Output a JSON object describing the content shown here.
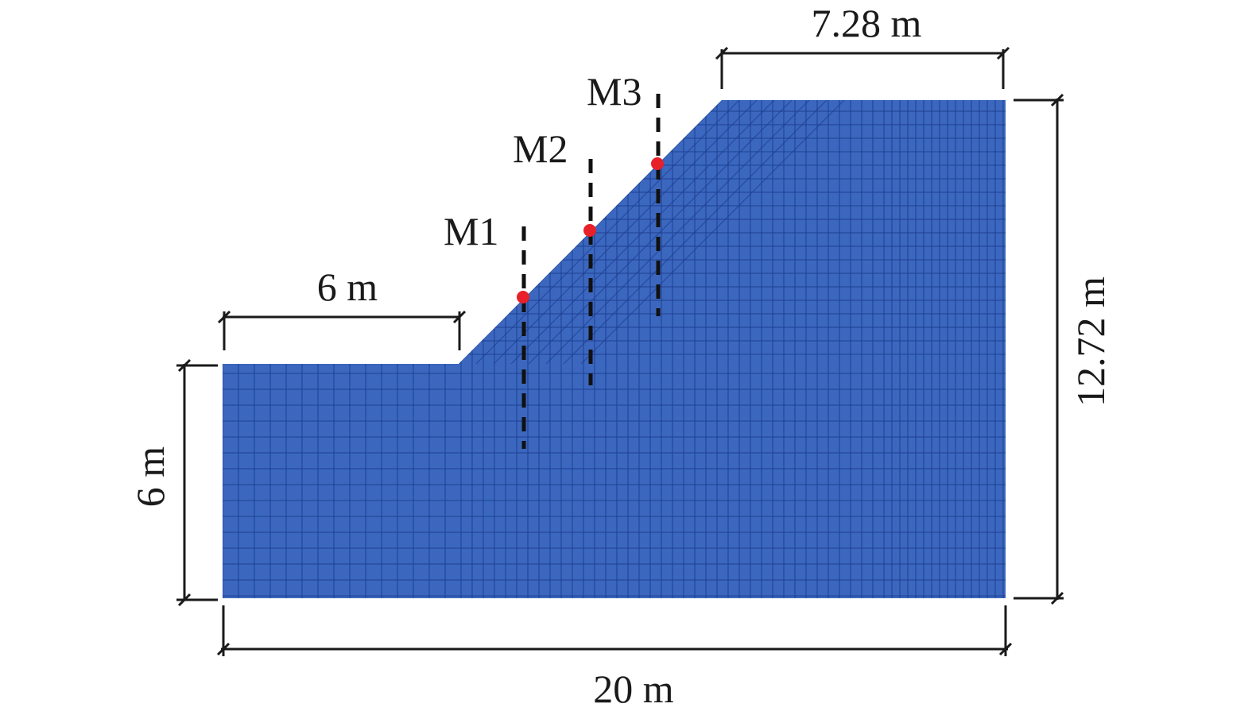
{
  "diagram": {
    "mesh_color": "#3b67bf",
    "mesh_line_color": "#1f3f8f",
    "marker_color": "#e8202a",
    "dimensions": {
      "top_width": "7.28 m",
      "toe_width": "6 m",
      "toe_height": "6 m",
      "total_height": "12.72 m",
      "total_width": "20 m"
    },
    "monitoring_points": [
      {
        "label": "M1"
      },
      {
        "label": "M2"
      },
      {
        "label": "M3"
      }
    ]
  }
}
